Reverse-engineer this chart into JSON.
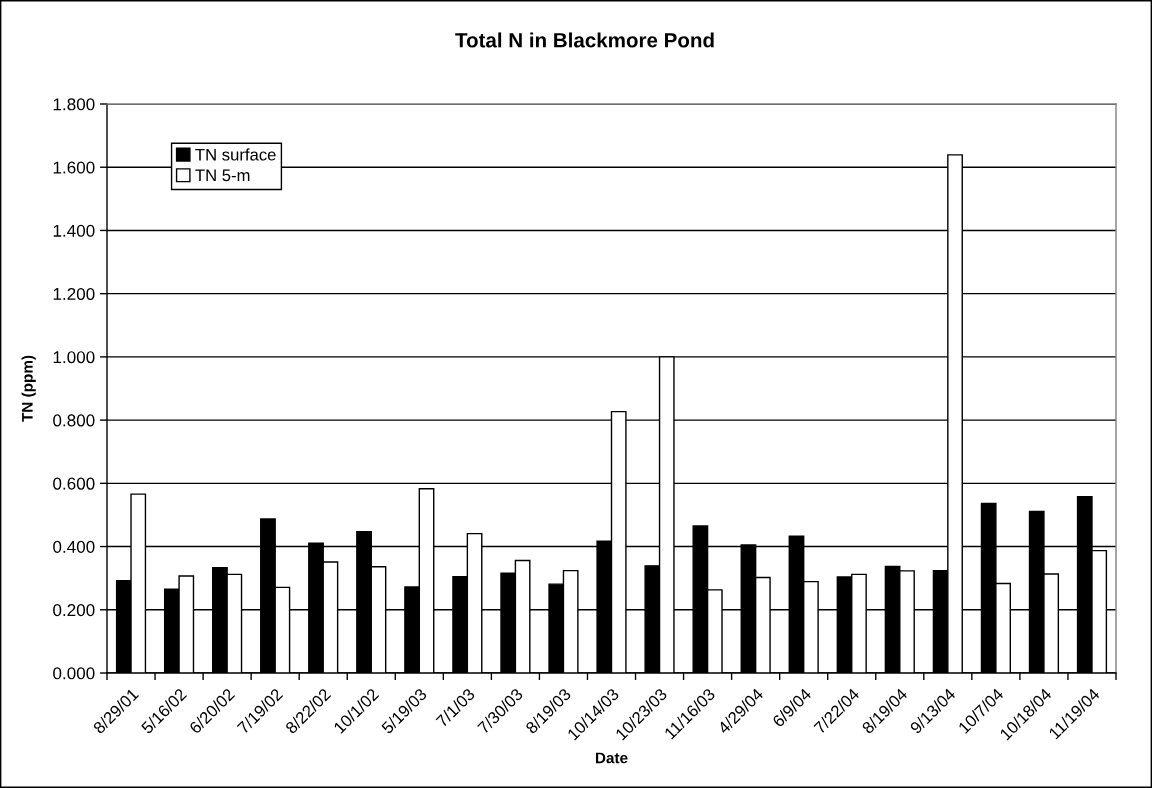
{
  "chart_data": {
    "type": "bar",
    "title": "Total N in Blackmore Pond",
    "xlabel": "Date",
    "ylabel": "TN (ppm)",
    "categories": [
      "8/29/01",
      "5/16/02",
      "6/20/02",
      "7/19/02",
      "8/22/02",
      "10/1/02",
      "5/19/03",
      "7/1/03",
      "7/30/03",
      "8/19/03",
      "10/14/03",
      "10/23/03",
      "11/16/03",
      "4/29/04",
      "6/9/04",
      "7/22/04",
      "8/19/04",
      "9/13/04",
      "10/7/04",
      "10/18/04",
      "11/19/04"
    ],
    "series": [
      {
        "name": "TN surface",
        "color": "#000000",
        "values": [
          0.292,
          0.265,
          0.333,
          0.487,
          0.411,
          0.447,
          0.272,
          0.305,
          0.316,
          0.281,
          0.417,
          0.339,
          0.465,
          0.405,
          0.433,
          0.304,
          0.337,
          0.324,
          0.536,
          0.511,
          0.558
        ]
      },
      {
        "name": "TN 5-m",
        "color": "#ffffff",
        "values": [
          0.566,
          0.307,
          0.312,
          0.271,
          0.351,
          0.336,
          0.583,
          0.441,
          0.356,
          0.324,
          0.827,
          1.0,
          0.263,
          0.302,
          0.289,
          0.312,
          0.323,
          1.639,
          0.283,
          0.313,
          0.387
        ]
      }
    ],
    "ylim": [
      0,
      1.8
    ],
    "yticks": [
      {
        "value": 0,
        "label": "0.000"
      },
      {
        "value": 0.2,
        "label": "0.200"
      },
      {
        "value": 0.4,
        "label": "0.400"
      },
      {
        "value": 0.6,
        "label": "0.600"
      },
      {
        "value": 0.8,
        "label": "0.800"
      },
      {
        "value": 1.0,
        "label": "1.000"
      },
      {
        "value": 1.2,
        "label": "1.200"
      },
      {
        "value": 1.4,
        "label": "1.400"
      },
      {
        "value": 1.6,
        "label": "1.600"
      },
      {
        "value": 1.8,
        "label": "1.800"
      }
    ],
    "grid": "y",
    "legend": "top left"
  }
}
